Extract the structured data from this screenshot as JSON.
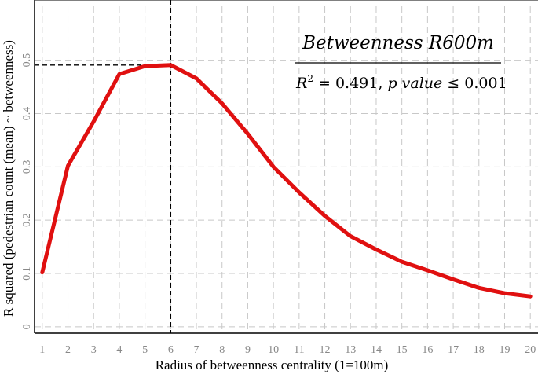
{
  "chart_data": {
    "type": "line",
    "xlabel": "Radius of betweenness centrality (1=100m)",
    "ylabel": "R squared (pedestrian count (mean) ~ betweenness)",
    "x": [
      1,
      2,
      3,
      4,
      5,
      6,
      7,
      8,
      9,
      10,
      11,
      12,
      13,
      14,
      15,
      16,
      17,
      18,
      19,
      20
    ],
    "series": [
      {
        "values": [
          0.102,
          0.302,
          0.385,
          0.474,
          0.489,
          0.491,
          0.466,
          0.419,
          0.362,
          0.3,
          0.252,
          0.208,
          0.17,
          0.145,
          0.122,
          0.106,
          0.089,
          0.073,
          0.063,
          0.057
        ]
      }
    ],
    "xlim": [
      0.7,
      20.3
    ],
    "ylim": [
      -0.012,
      0.613
    ],
    "x_ticks": [
      "1",
      "2",
      "3",
      "4",
      "5",
      "6",
      "7",
      "8",
      "9",
      "10",
      "11",
      "12",
      "13",
      "14",
      "15",
      "16",
      "17",
      "18",
      "19",
      "20"
    ],
    "y_ticks": [
      "0",
      "0.1",
      "0.2",
      "0.3",
      "0.4",
      "0.5"
    ],
    "grid": true,
    "highlight": {
      "x": 6,
      "y": 0.491
    },
    "annotation": {
      "title": "Betweenness R600m",
      "r2_symbol": "R",
      "r2_sup": "2",
      "r2_value": " = 0.491, ",
      "p_label": "p value",
      "p_value": " ≤ 0.001"
    },
    "colors": {
      "line": "#e01010",
      "grid": "#c8c8c8",
      "axis": "#000000",
      "tick": "#888888"
    }
  }
}
